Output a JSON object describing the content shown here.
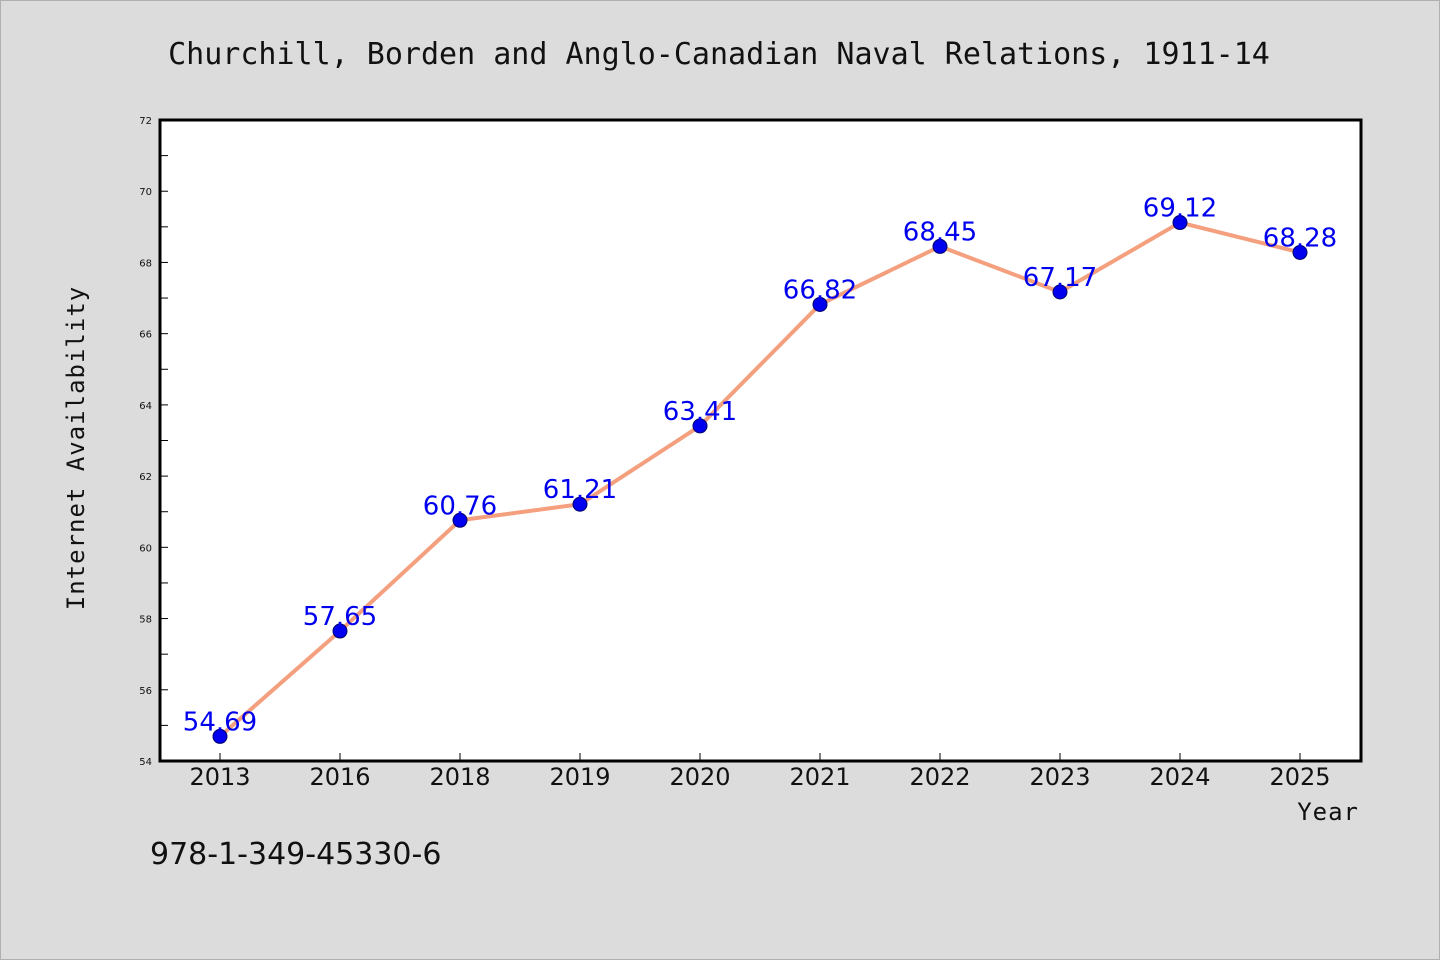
{
  "chart_data": {
    "type": "line",
    "title": "Churchill, Borden and Anglo-Canadian Naval Relations, 1911-14",
    "xlabel": "Year",
    "ylabel": "Internet Availability",
    "categories": [
      "2013",
      "2016",
      "2018",
      "2019",
      "2020",
      "2021",
      "2022",
      "2023",
      "2024",
      "2025"
    ],
    "series": [
      {
        "values": [
          54.69,
          57.65,
          60.76,
          61.21,
          63.41,
          66.82,
          68.45,
          67.17,
          69.12,
          68.28
        ],
        "labels": [
          "54.69",
          "57.65",
          "60.76",
          "61.21",
          "63.41",
          "66.82",
          "68.45",
          "67.17",
          "69.12",
          "68.28"
        ],
        "line_color": "#f4a07e",
        "marker_color": "#0000ee",
        "label_color": "#0000ee"
      }
    ],
    "ylim": [
      54,
      72
    ],
    "yticks": [
      "54",
      "56",
      "58",
      "60",
      "62",
      "64",
      "66",
      "68",
      "70",
      "72"
    ],
    "grid": false,
    "legend": "none"
  },
  "footer_text": "978-1-349-45330-6",
  "colors": {
    "background": "#dcdcdc",
    "plot_background": "#ffffff"
  }
}
